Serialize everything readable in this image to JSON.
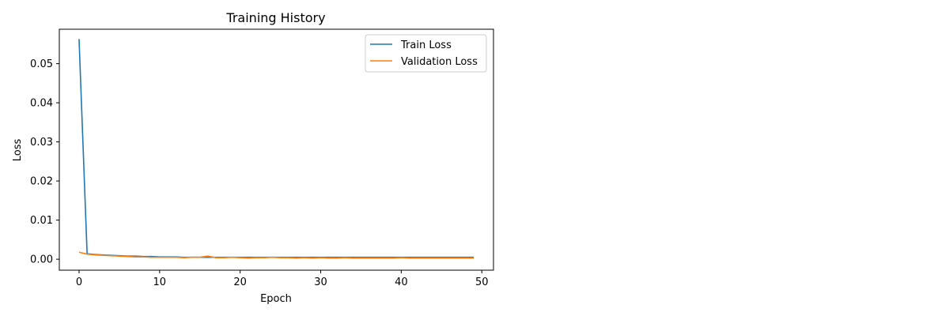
{
  "chart_data": {
    "type": "line",
    "title": "Training History",
    "xlabel": "Epoch",
    "ylabel": "Loss",
    "xlim": [
      -2.45,
      51.45
    ],
    "ylim": [
      -0.0028,
      0.0588
    ],
    "xticks": [
      0,
      10,
      20,
      30,
      40,
      50
    ],
    "yticks": [
      0.0,
      0.01,
      0.02,
      0.03,
      0.04,
      0.05
    ],
    "ytick_labels": [
      "0.00",
      "0.01",
      "0.02",
      "0.03",
      "0.04",
      "0.05"
    ],
    "grid": false,
    "legend": "top-right",
    "x": [
      0,
      1,
      2,
      3,
      4,
      5,
      6,
      7,
      8,
      9,
      10,
      11,
      12,
      13,
      14,
      15,
      16,
      17,
      18,
      19,
      20,
      21,
      22,
      23,
      24,
      25,
      26,
      27,
      28,
      29,
      30,
      31,
      32,
      33,
      34,
      35,
      36,
      37,
      38,
      39,
      40,
      41,
      42,
      43,
      44,
      45,
      46,
      47,
      48,
      49
    ],
    "series": [
      {
        "name": "Train Loss",
        "color": "#1f77b4",
        "values": [
          0.0563,
          0.0014,
          0.0012,
          0.0011,
          0.001,
          0.0009,
          0.0008,
          0.0008,
          0.0007,
          0.0007,
          0.0006,
          0.0006,
          0.0006,
          0.0005,
          0.0005,
          0.0005,
          0.0005,
          0.0005,
          0.0005,
          0.0005,
          0.0005,
          0.0005,
          0.0005,
          0.0005,
          0.0005,
          0.0005,
          0.0005,
          0.0005,
          0.0005,
          0.0005,
          0.0005,
          0.0005,
          0.0005,
          0.0005,
          0.0005,
          0.0005,
          0.0005,
          0.0005,
          0.0005,
          0.0005,
          0.0005,
          0.0005,
          0.0005,
          0.0005,
          0.0005,
          0.0005,
          0.0005,
          0.0005,
          0.0005,
          0.0005
        ]
      },
      {
        "name": "Validation Loss",
        "color": "#ff7f0e",
        "values": [
          0.0018,
          0.0013,
          0.0011,
          0.001,
          0.0009,
          0.0008,
          0.0007,
          0.0006,
          0.0006,
          0.0005,
          0.0005,
          0.0005,
          0.0005,
          0.0004,
          0.0005,
          0.0005,
          0.0008,
          0.0004,
          0.0004,
          0.0005,
          0.0004,
          0.0003,
          0.0004,
          0.0004,
          0.0005,
          0.0004,
          0.0004,
          0.0003,
          0.0004,
          0.0003,
          0.0004,
          0.0003,
          0.0003,
          0.0004,
          0.0003,
          0.0003,
          0.0003,
          0.0003,
          0.0003,
          0.0003,
          0.0004,
          0.0003,
          0.0003,
          0.0003,
          0.0003,
          0.0003,
          0.0003,
          0.0003,
          0.0003,
          0.0003
        ]
      }
    ]
  }
}
